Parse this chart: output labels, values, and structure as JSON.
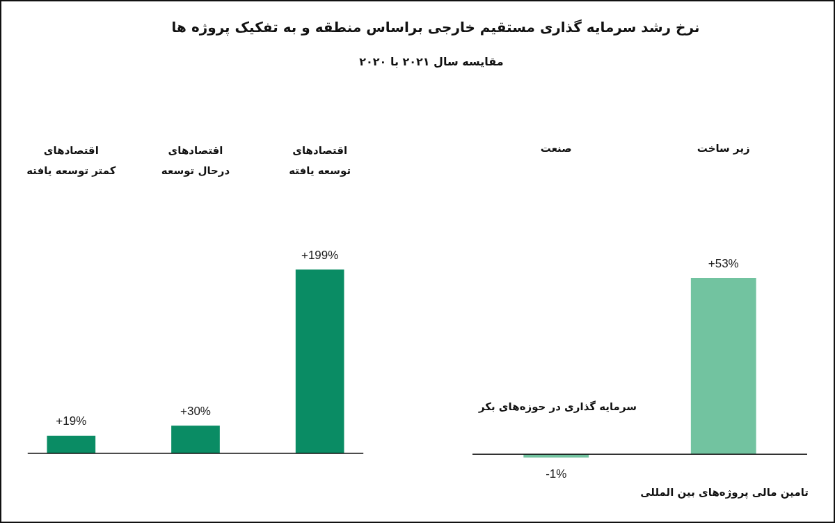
{
  "chart_data": [
    {
      "type": "other",
      "title": "نرخ رشد سرمایه گذاری مستقیم خارجی براساس منطقه و به تفکیک پروژه ها",
      "subtitle": "مقایسه سال ۲۰۲۱ با ۲۰۲۰"
    },
    {
      "type": "bar",
      "categories": [
        "اقتصادهای کمتر توسعه یافته",
        "اقتصادهای درحال توسعه",
        "اقتصادهای توسعه یافته"
      ],
      "values": [
        19,
        30,
        199
      ],
      "color": "#0a8c64",
      "value_labels": [
        "+19%",
        "+30%",
        "+199%"
      ]
    },
    {
      "type": "bar",
      "categories": [
        "صنعت",
        "زیر ساخت"
      ],
      "values": [
        -1,
        53
      ],
      "color": "#72c3a0",
      "value_labels": [
        "-1%",
        "+53%"
      ],
      "annotations": [
        "سرمایه گذاری در حوزه‌های بکر",
        "تامین مالی پروژه‌های بین المللی"
      ]
    }
  ]
}
